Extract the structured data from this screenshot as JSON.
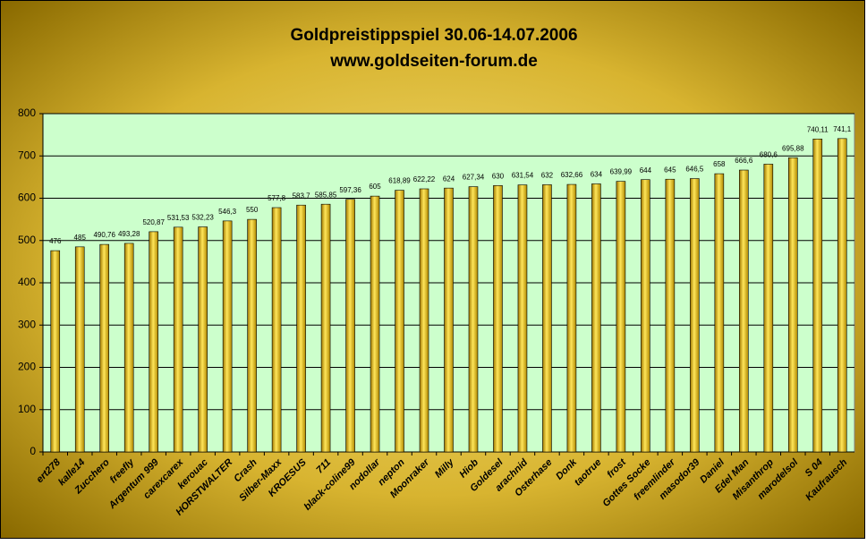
{
  "chart_data": {
    "type": "bar",
    "title": "Goldpreistippspiel 30.06-14.07.2006",
    "subtitle": "www.goldseiten-forum.de",
    "categories": [
      "ert278",
      "kalle14",
      "Zucchero",
      "freefly",
      "Argentum 999",
      "carexcarex",
      "kerouac",
      "HORSTWALTER",
      "Crash",
      "Silber-Maxx",
      "KROESUS",
      "711",
      "black-coline99",
      "nodollar",
      "nepton",
      "Moonraker",
      "Milly",
      "Hiob",
      "Goldesel",
      "arachnid",
      "Osterhase",
      "Donk",
      "taotrue",
      "frost",
      "Gottes Socke",
      "freemlinder",
      "masodor39",
      "Daniel",
      "Edel Man",
      "Misanthrop",
      "marodelsol",
      "S 04",
      "Kaufrausch"
    ],
    "values": [
      476,
      485,
      490.76,
      493.28,
      520.87,
      531.53,
      532.23,
      546.3,
      550,
      577.8,
      583.7,
      585.85,
      597.36,
      605,
      618.89,
      622.22,
      624,
      627.34,
      630,
      631.54,
      632,
      632.66,
      634,
      639.99,
      644,
      645,
      646.5,
      658,
      666.6,
      680.6,
      695.88,
      740.11,
      741.1
    ],
    "value_labels": [
      "476",
      "485",
      "490,76",
      "493,28",
      "520,87",
      "531,53",
      "532,23",
      "546,3",
      "550",
      "577,8",
      "583,7",
      "585,85",
      "597,36",
      "605",
      "618,89",
      "622,22",
      "624",
      "627,34",
      "630",
      "631,54",
      "632",
      "632,66",
      "634",
      "639,99",
      "644",
      "645",
      "646,5",
      "658",
      "666,6",
      "680,6",
      "695,88",
      "740,11",
      "741,1"
    ],
    "color": "#f2c200",
    "ylim": [
      0,
      800
    ],
    "yticks": [
      0,
      100,
      200,
      300,
      400,
      500,
      600,
      700,
      800
    ],
    "grid": true
  }
}
